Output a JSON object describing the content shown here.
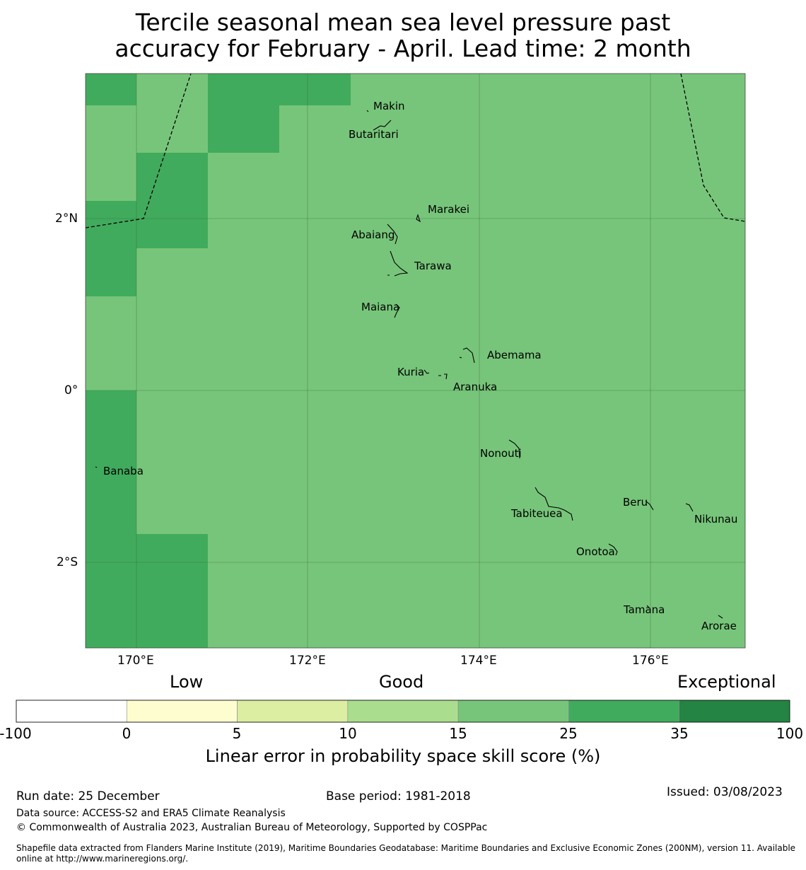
{
  "title": {
    "line1": "Tercile seasonal mean sea level pressure past",
    "line2": "accuracy for February - April. Lead time: 2 month"
  },
  "map": {
    "lat_labels": [
      "2°N",
      "0°",
      "2°S"
    ],
    "lon_labels": [
      "170°E",
      "172°E",
      "174°E",
      "176°E"
    ],
    "islands": [
      "Makin",
      "Butaritari",
      "Marakei",
      "Abaiang",
      "Tarawa",
      "Maiana",
      "Abemama",
      "Kuria",
      "Aranuka",
      "Banaba",
      "Nonouti",
      "Beru",
      "Tabiteuea",
      "Nikunau",
      "Onotoa",
      "Tamana",
      "Arorae"
    ]
  },
  "colorbar": {
    "categories": {
      "low": "Low",
      "good": "Good",
      "exceptional": "Exceptional"
    },
    "ticks": [
      "-100",
      "0",
      "5",
      "10",
      "15",
      "25",
      "35",
      "100"
    ],
    "colors": [
      "#ffffff",
      "#fefdcf",
      "#dbeea1",
      "#aadd8e",
      "#77c57a",
      "#41ab5d",
      "#238443"
    ],
    "title": "Linear error in probability space skill score (%)"
  },
  "footer": {
    "run_date": "Run date: 25 December",
    "base_period": "Base period: 1981-2018",
    "issued": "Issued: 03/08/2023",
    "data_source": "Data source: ACCESS-S2 and ERA5 Climate Reanalysis",
    "copyright": "© Commonwealth of Australia 2023, Australian Bureau of Meteorology, Supported by COSPPac",
    "shapefile_line1": "Shapefile data extracted from Flanders Marine Institute (2019), Maritime Boundaries Geodatabase: Maritime Boundaries and Exclusive Economic Zones (200NM), version 11. Available",
    "shapefile_line2": "online at http://www.marineregions.org/."
  }
}
